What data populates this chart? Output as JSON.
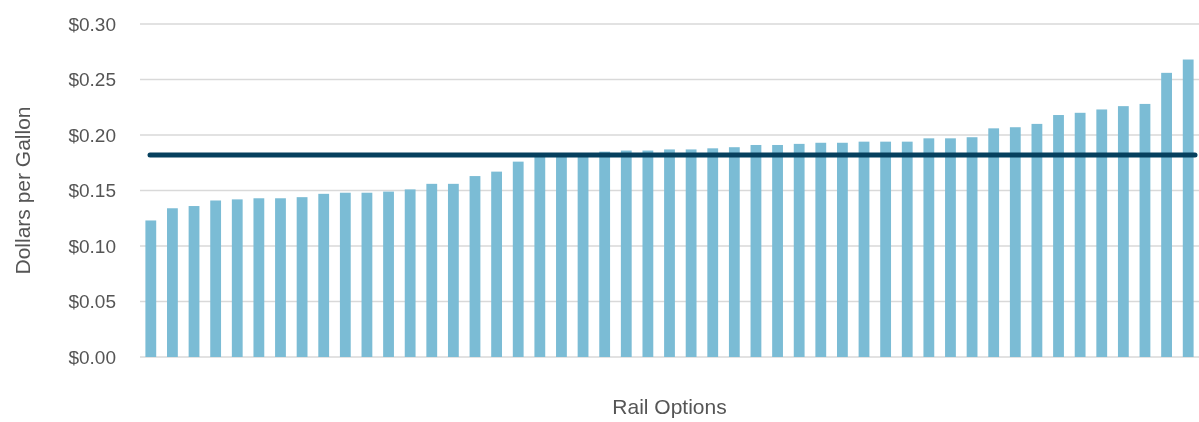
{
  "chart_data": {
    "type": "bar",
    "xlabel": "Rail Options",
    "ylabel": "Dollars per Gallon",
    "categories": [
      null,
      null,
      null,
      null,
      null,
      null,
      null,
      null,
      null,
      null,
      null,
      null,
      null,
      null,
      null,
      null,
      null,
      null,
      null,
      null,
      null,
      null,
      null,
      null,
      null,
      null,
      null,
      null,
      null,
      null,
      null,
      null,
      null,
      null,
      null,
      null,
      null,
      null,
      null,
      null,
      null,
      null,
      null,
      null,
      null,
      null,
      null,
      null,
      null
    ],
    "values": [
      0.123,
      0.134,
      0.136,
      0.141,
      0.142,
      0.143,
      0.143,
      0.144,
      0.147,
      0.148,
      0.148,
      0.149,
      0.151,
      0.156,
      0.156,
      0.163,
      0.167,
      0.176,
      0.181,
      0.182,
      0.182,
      0.185,
      0.186,
      0.186,
      0.187,
      0.187,
      0.188,
      0.189,
      0.191,
      0.191,
      0.192,
      0.193,
      0.193,
      0.194,
      0.194,
      0.194,
      0.197,
      0.197,
      0.198,
      0.206,
      0.207,
      0.21,
      0.218,
      0.22,
      0.223,
      0.226,
      0.228,
      0.256,
      0.268
    ],
    "color": "#7bbcd5",
    "ylim": [
      0,
      0.3
    ],
    "yticks": [
      {
        "value": 0,
        "label": "$0.00"
      },
      {
        "value": 0.05,
        "label": "$0.05"
      },
      {
        "value": 0.1,
        "label": "$0.10"
      },
      {
        "value": 0.15,
        "label": "$0.15"
      },
      {
        "value": 0.2,
        "label": "$0.20"
      },
      {
        "value": 0.25,
        "label": "$0.25"
      },
      {
        "value": 0.3,
        "label": "$0.30"
      }
    ],
    "grid": "y",
    "ref_lines": [
      {
        "axis": "y",
        "value": 0.182,
        "color": "#06405e"
      }
    ]
  }
}
